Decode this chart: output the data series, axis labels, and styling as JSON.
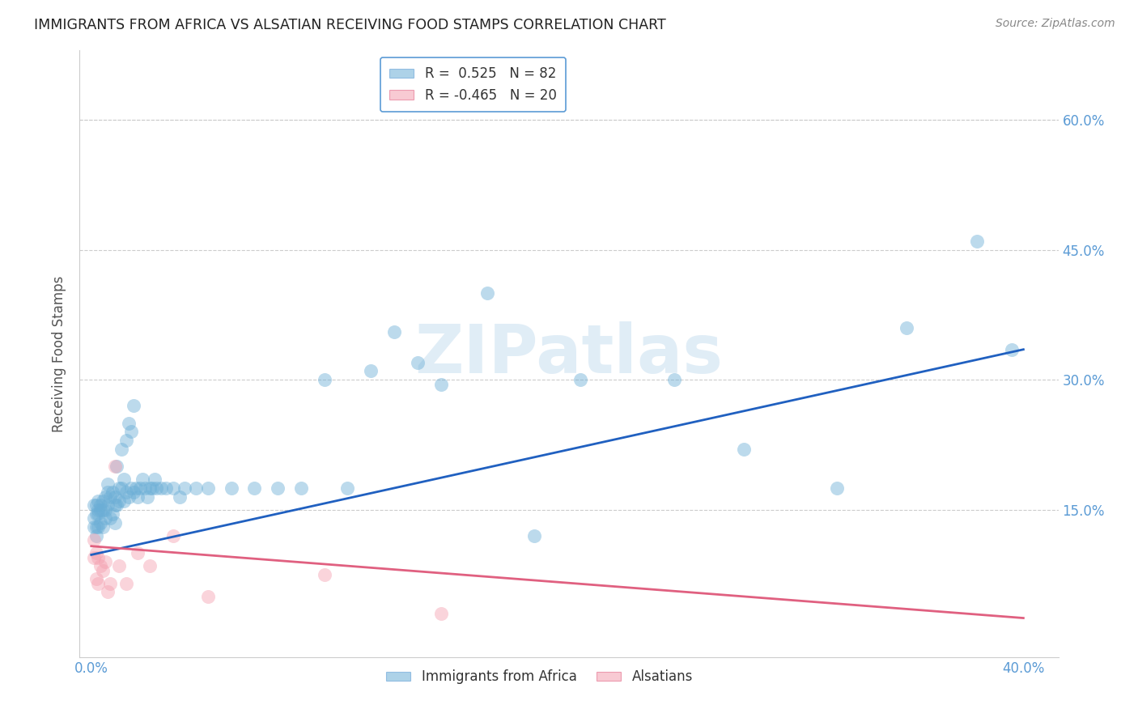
{
  "title": "IMMIGRANTS FROM AFRICA VS ALSATIAN RECEIVING FOOD STAMPS CORRELATION CHART",
  "source": "Source: ZipAtlas.com",
  "ylabel": "Receiving Food Stamps",
  "xlim": [
    -0.005,
    0.415
  ],
  "ylim": [
    -0.02,
    0.68
  ],
  "xticks": [
    0.0,
    0.4
  ],
  "xticklabels": [
    "0.0%",
    "40.0%"
  ],
  "yticks": [
    0.15,
    0.3,
    0.45,
    0.6
  ],
  "yticklabels": [
    "15.0%",
    "30.0%",
    "45.0%",
    "60.0%"
  ],
  "blue_R": 0.525,
  "blue_N": 82,
  "pink_R": -0.465,
  "pink_N": 20,
  "blue_color": "#6baed6",
  "pink_color": "#f4a0b0",
  "blue_line_color": "#2060c0",
  "pink_line_color": "#e06080",
  "watermark_text": "ZIPatlas",
  "legend_labels": [
    "Immigrants from Africa",
    "Alsatians"
  ],
  "blue_line_x0": 0.0,
  "blue_line_y0": 0.098,
  "blue_line_x1": 0.4,
  "blue_line_y1": 0.335,
  "pink_line_x0": 0.0,
  "pink_line_y0": 0.108,
  "pink_line_x1": 0.4,
  "pink_line_y1": 0.025,
  "blue_x": [
    0.001,
    0.001,
    0.001,
    0.002,
    0.002,
    0.002,
    0.002,
    0.003,
    0.003,
    0.003,
    0.003,
    0.004,
    0.004,
    0.004,
    0.005,
    0.005,
    0.005,
    0.006,
    0.006,
    0.006,
    0.007,
    0.007,
    0.007,
    0.008,
    0.008,
    0.009,
    0.009,
    0.01,
    0.01,
    0.01,
    0.011,
    0.011,
    0.012,
    0.012,
    0.013,
    0.013,
    0.014,
    0.014,
    0.015,
    0.015,
    0.016,
    0.016,
    0.017,
    0.017,
    0.018,
    0.018,
    0.019,
    0.02,
    0.021,
    0.022,
    0.023,
    0.024,
    0.025,
    0.026,
    0.027,
    0.028,
    0.03,
    0.032,
    0.035,
    0.038,
    0.04,
    0.045,
    0.05,
    0.06,
    0.07,
    0.08,
    0.09,
    0.1,
    0.11,
    0.12,
    0.13,
    0.14,
    0.15,
    0.17,
    0.19,
    0.21,
    0.25,
    0.28,
    0.32,
    0.35,
    0.38,
    0.395
  ],
  "blue_y": [
    0.13,
    0.14,
    0.155,
    0.12,
    0.13,
    0.145,
    0.155,
    0.13,
    0.145,
    0.15,
    0.16,
    0.135,
    0.15,
    0.155,
    0.13,
    0.15,
    0.16,
    0.14,
    0.15,
    0.165,
    0.155,
    0.17,
    0.18,
    0.14,
    0.165,
    0.145,
    0.17,
    0.135,
    0.155,
    0.165,
    0.155,
    0.2,
    0.16,
    0.175,
    0.175,
    0.22,
    0.16,
    0.185,
    0.17,
    0.23,
    0.165,
    0.25,
    0.175,
    0.24,
    0.17,
    0.27,
    0.175,
    0.165,
    0.175,
    0.185,
    0.175,
    0.165,
    0.175,
    0.175,
    0.185,
    0.175,
    0.175,
    0.175,
    0.175,
    0.165,
    0.175,
    0.175,
    0.175,
    0.175,
    0.175,
    0.175,
    0.175,
    0.3,
    0.175,
    0.31,
    0.355,
    0.32,
    0.295,
    0.4,
    0.12,
    0.3,
    0.3,
    0.22,
    0.175,
    0.36,
    0.46,
    0.335
  ],
  "pink_x": [
    0.001,
    0.001,
    0.002,
    0.002,
    0.003,
    0.003,
    0.004,
    0.005,
    0.006,
    0.007,
    0.008,
    0.01,
    0.012,
    0.015,
    0.02,
    0.025,
    0.035,
    0.05,
    0.1,
    0.15
  ],
  "pink_y": [
    0.115,
    0.095,
    0.1,
    0.07,
    0.095,
    0.065,
    0.085,
    0.08,
    0.09,
    0.055,
    0.065,
    0.2,
    0.085,
    0.065,
    0.1,
    0.085,
    0.12,
    0.05,
    0.075,
    0.03
  ]
}
